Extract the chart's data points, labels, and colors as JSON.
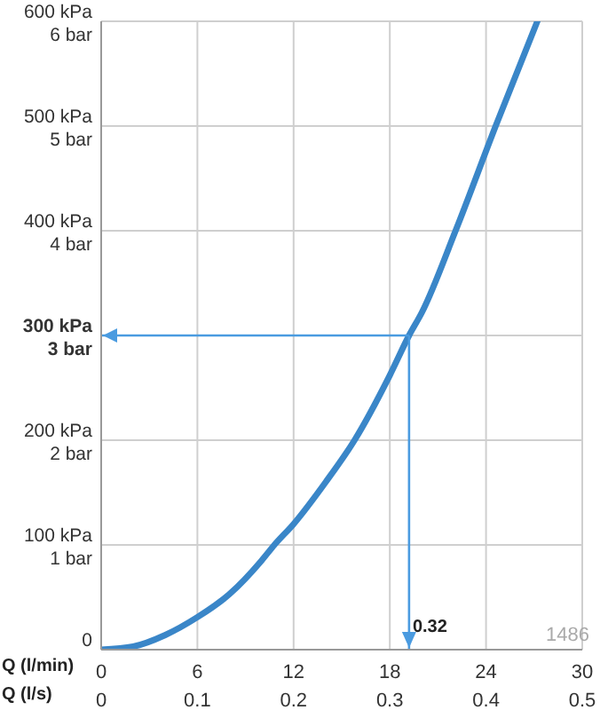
{
  "chart_data": {
    "type": "line",
    "xlabel": "Q (l/min)",
    "x2label": "Q (l/s)",
    "x": [
      0,
      2,
      4,
      6,
      8,
      10,
      10.8,
      12,
      14,
      15.8,
      18,
      19.2,
      20,
      22.1,
      24.6,
      27.2
    ],
    "series": [
      {
        "color": "#3a86c8",
        "values": [
          0,
          3,
          14,
          31,
          53,
          85,
          100,
          120,
          160,
          200,
          262,
          300,
          322,
          400,
          500,
          600
        ]
      }
    ],
    "xlim": [
      0,
      30
    ],
    "xticks": [
      0,
      6,
      12,
      18,
      24,
      30
    ],
    "x2lim": [
      0,
      0.5
    ],
    "x2ticks": [
      0,
      0.1,
      0.2,
      0.3,
      0.4,
      0.5
    ],
    "ylim": [
      0,
      600
    ],
    "yticks": [
      0,
      {
        "value": 100,
        "label": "100 kPa"
      },
      {
        "value": 200,
        "label": "200 kPa"
      },
      {
        "value": 300,
        "label": "300 kPa"
      },
      {
        "value": 400,
        "label": "400 kPa"
      },
      {
        "value": 500,
        "label": "500 kPa"
      },
      {
        "value": 600,
        "label": "600 kPa"
      }
    ],
    "y2lim": [
      0,
      6
    ],
    "y2ticks": [
      {
        "value": 0,
        "label": null
      },
      {
        "value": 1,
        "label": "1 bar"
      },
      {
        "value": 2,
        "label": "2 bar"
      },
      {
        "value": 3,
        "label": "3 bar"
      },
      {
        "value": 4,
        "label": "4 bar"
      },
      {
        "value": 5,
        "label": "5 bar"
      },
      {
        "value": 6,
        "label": "6 bar"
      }
    ],
    "ref_lines": [
      {
        "axis": "y",
        "value": 300,
        "label": null,
        "color": "#4a9be0"
      },
      {
        "axis": "x2",
        "value": 0.32,
        "label": "0.32",
        "color": "#4a9be0"
      }
    ],
    "annotations": [
      "1486"
    ],
    "grid": true,
    "marker": "none",
    "line_style": "solid",
    "legend": false
  }
}
